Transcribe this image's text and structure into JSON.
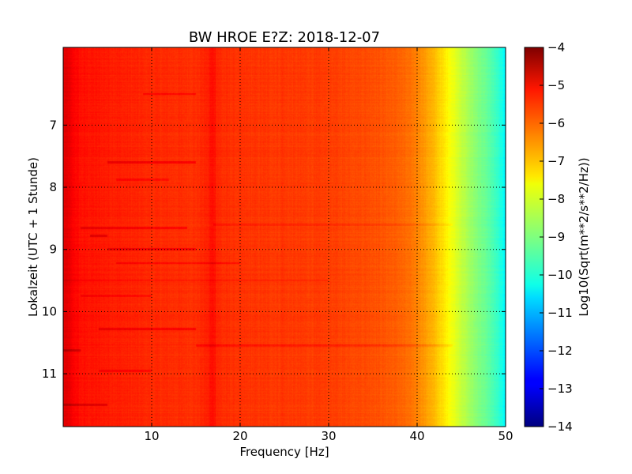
{
  "chart_data": {
    "type": "heatmap",
    "title": "BW HROE E?Z: 2018-12-07",
    "xlabel": "Frequency [Hz]",
    "ylabel": "Lokalzeit (UTC + 1 Stunde)",
    "xlim": [
      0,
      50
    ],
    "ylim": [
      5.75,
      11.85
    ],
    "y_inverted": true,
    "x_ticks": [
      10,
      20,
      30,
      40,
      50
    ],
    "x_tick_labels": [
      "10",
      "20",
      "30",
      "40",
      "50"
    ],
    "y_ticks": [
      7,
      8,
      9,
      10,
      11
    ],
    "y_tick_labels": [
      "7",
      "8",
      "9",
      "10",
      "11"
    ],
    "grid": true,
    "colormap": "jet",
    "colorbar": {
      "label": "Log10(Sqrt(m**2/s**2/Hz))",
      "min": -14,
      "max": -4,
      "ticks": [
        -4,
        -5,
        -6,
        -7,
        -8,
        -9,
        -10,
        -11,
        -12,
        -13,
        -14
      ],
      "tick_labels": [
        "−4",
        "−5",
        "−6",
        "−7",
        "−8",
        "−9",
        "−10",
        "−11",
        "−12",
        "−13",
        "−14"
      ]
    },
    "spectral_profile": {
      "frequency": [
        0,
        0.5,
        1,
        2,
        5,
        10,
        15,
        16.5,
        17,
        18,
        20,
        25,
        30,
        35,
        38,
        40,
        41,
        42,
        43,
        44,
        45,
        46,
        47,
        48,
        49,
        50
      ],
      "log_amplitude": [
        -5.0,
        -5.0,
        -5.2,
        -5.4,
        -5.5,
        -5.65,
        -5.7,
        -5.55,
        -5.5,
        -5.7,
        -5.75,
        -5.8,
        -5.85,
        -6.0,
        -6.2,
        -6.5,
        -6.8,
        -7.1,
        -7.5,
        -7.9,
        -8.3,
        -8.7,
        -9.0,
        -9.3,
        -9.7,
        -10.3
      ]
    },
    "events": [
      {
        "time": 6.5,
        "fmin": 9,
        "fmax": 15,
        "delta": 0.4
      },
      {
        "time": 7.6,
        "fmin": 5,
        "fmax": 15,
        "delta": 0.5
      },
      {
        "time": 7.88,
        "fmin": 6,
        "fmax": 12,
        "delta": 0.3
      },
      {
        "time": 8.65,
        "fmin": 2,
        "fmax": 14,
        "delta": 0.4
      },
      {
        "time": 8.78,
        "fmin": 3,
        "fmax": 5,
        "delta": 0.5
      },
      {
        "time": 9.0,
        "fmin": 5,
        "fmax": 15,
        "delta": 0.5
      },
      {
        "time": 9.22,
        "fmin": 6,
        "fmax": 20,
        "delta": 0.35
      },
      {
        "time": 9.75,
        "fmin": 2,
        "fmax": 10,
        "delta": 0.3
      },
      {
        "time": 10.28,
        "fmin": 4,
        "fmax": 15,
        "delta": 0.45
      },
      {
        "time": 10.55,
        "fmin": 15,
        "fmax": 44,
        "delta": 0.3
      },
      {
        "time": 10.62,
        "fmin": 0,
        "fmax": 2,
        "delta": 0.5
      },
      {
        "time": 11.5,
        "fmin": 0,
        "fmax": 5,
        "delta": 0.5
      },
      {
        "time": 8.6,
        "fmin": 17,
        "fmax": 44,
        "delta": 0.25
      },
      {
        "time": 9.5,
        "fmin": 0,
        "fmax": 30,
        "delta": 0.2
      },
      {
        "time": 10.95,
        "fmin": 4,
        "fmax": 10,
        "delta": 0.35
      }
    ]
  }
}
